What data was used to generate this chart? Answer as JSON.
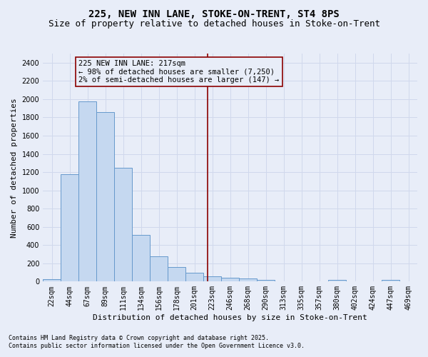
{
  "title": "225, NEW INN LANE, STOKE-ON-TRENT, ST4 8PS",
  "subtitle": "Size of property relative to detached houses in Stoke-on-Trent",
  "xlabel": "Distribution of detached houses by size in Stoke-on-Trent",
  "ylabel": "Number of detached properties",
  "categories": [
    "22sqm",
    "44sqm",
    "67sqm",
    "89sqm",
    "111sqm",
    "134sqm",
    "156sqm",
    "178sqm",
    "201sqm",
    "223sqm",
    "246sqm",
    "268sqm",
    "290sqm",
    "313sqm",
    "335sqm",
    "357sqm",
    "380sqm",
    "402sqm",
    "424sqm",
    "447sqm",
    "469sqm"
  ],
  "values": [
    30,
    1175,
    1975,
    1855,
    1245,
    515,
    275,
    160,
    95,
    55,
    45,
    35,
    22,
    0,
    0,
    0,
    18,
    0,
    0,
    18,
    0
  ],
  "bar_color": "#c5d8f0",
  "bar_edge_color": "#6699cc",
  "annotation_box_text": "225 NEW INN LANE: 217sqm\n← 98% of detached houses are smaller (7,250)\n2% of semi-detached houses are larger (147) →",
  "ylim": [
    0,
    2500
  ],
  "yticks": [
    0,
    200,
    400,
    600,
    800,
    1000,
    1200,
    1400,
    1600,
    1800,
    2000,
    2200,
    2400
  ],
  "footnote1": "Contains HM Land Registry data © Crown copyright and database right 2025.",
  "footnote2": "Contains public sector information licensed under the Open Government Licence v3.0.",
  "background_color": "#e8edf8",
  "grid_color": "#d0d8ec",
  "title_fontsize": 10,
  "subtitle_fontsize": 9,
  "axis_label_fontsize": 8,
  "tick_fontsize": 7,
  "footnote_fontsize": 6,
  "annotation_fontsize": 7.5,
  "property_sqm": 217,
  "line_idx_low": 8,
  "line_val_low": 201,
  "line_val_high": 223
}
